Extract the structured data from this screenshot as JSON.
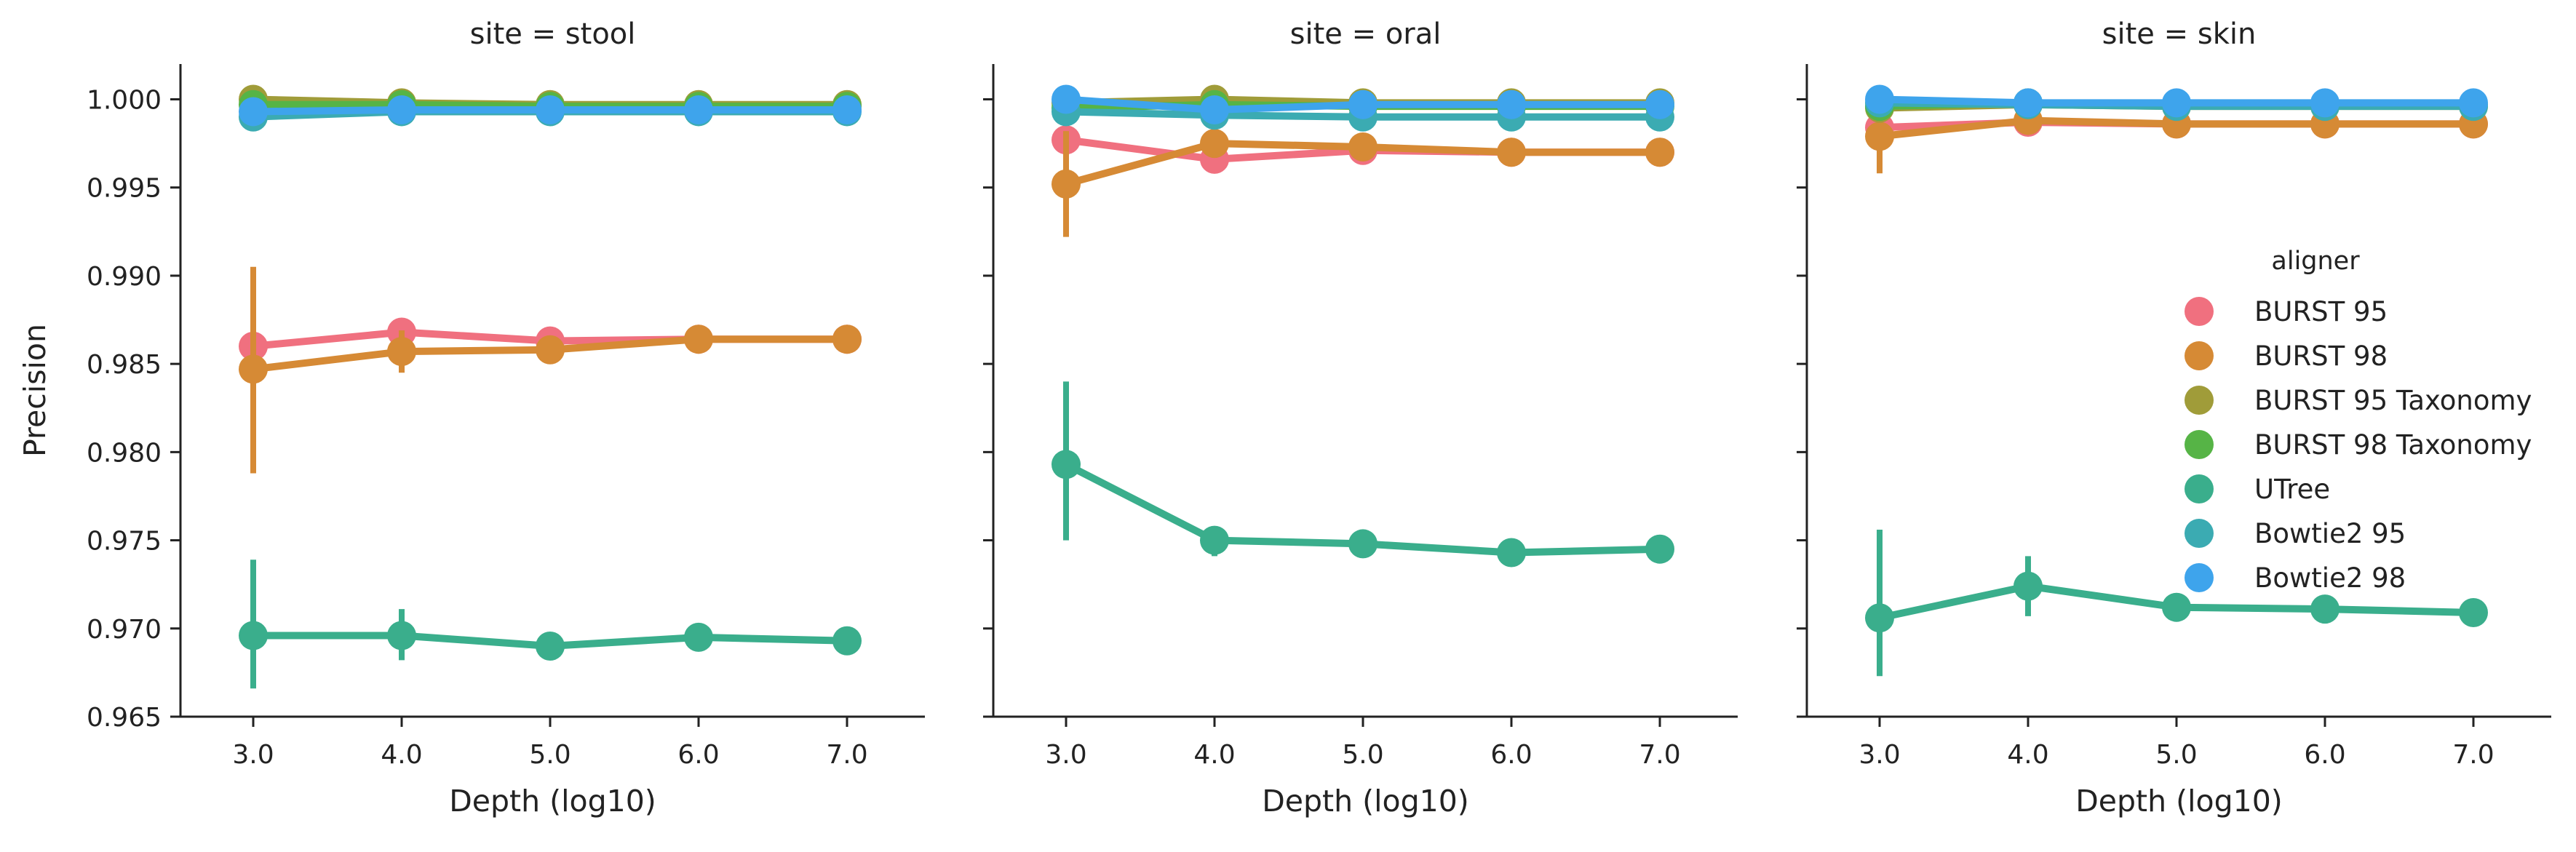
{
  "chart_data": {
    "type": "line",
    "facet_label": "site",
    "ylabel": "Precision",
    "xlabel": "Depth (log10)",
    "ylim": [
      0.965,
      1.002
    ],
    "yticks": [
      "0.965",
      "0.970",
      "0.975",
      "0.980",
      "0.985",
      "0.990",
      "0.995",
      "1.000"
    ],
    "categories": [
      "3.0",
      "4.0",
      "5.0",
      "6.0",
      "7.0"
    ],
    "legend": {
      "title": "aligner",
      "placement": "center-right",
      "items": [
        "BURST 95",
        "BURST 98",
        "BURST 95 Taxonomy",
        "BURST 98 Taxonomy",
        "UTree",
        "Bowtie2 95",
        "Bowtie2 98"
      ]
    },
    "colors": {
      "BURST 95": "#f0707f",
      "BURST 98": "#d68a35",
      "BURST 95 Taxonomy": "#a09c39",
      "BURST 98 Taxonomy": "#56b446",
      "UTree": "#3aae8c",
      "Bowtie2 95": "#3babb2",
      "Bowtie2 98": "#3ea4ec"
    },
    "panels": [
      {
        "title": "site = stool",
        "series": [
          {
            "name": "BURST 95",
            "values": [
              0.986,
              0.9868,
              0.9863,
              0.9864,
              0.9864
            ],
            "err": [
              [
                0.9855,
                0.9865
              ],
              [
                0.986,
                0.9875
              ],
              [
                0.9858,
                0.9868
              ],
              [
                0.986,
                0.9868
              ],
              [
                0.9861,
                0.9867
              ]
            ]
          },
          {
            "name": "BURST 98",
            "values": [
              0.9847,
              0.9857,
              0.9858,
              0.9864,
              0.9864
            ],
            "err": [
              [
                0.9788,
                0.9905
              ],
              [
                0.9845,
                0.9869
              ],
              [
                0.9854,
                0.9862
              ],
              [
                0.9861,
                0.9867
              ],
              [
                0.9861,
                0.9867
              ]
            ]
          },
          {
            "name": "BURST 95 Taxonomy",
            "values": [
              1.0,
              0.9998,
              0.9997,
              0.9997,
              0.9997
            ],
            "err": [
              [
                0.9996,
                1.0002
              ],
              [
                0.9996,
                1.0
              ],
              [
                0.9995,
                0.9999
              ],
              [
                0.9995,
                0.9999
              ],
              [
                0.9995,
                0.9999
              ]
            ]
          },
          {
            "name": "BURST 98 Taxonomy",
            "values": [
              0.9997,
              0.9997,
              0.9996,
              0.9996,
              0.9996
            ],
            "err": [
              [
                0.9993,
                1.0001
              ],
              [
                0.9994,
                1.0
              ],
              [
                0.9994,
                0.9998
              ],
              [
                0.9994,
                0.9998
              ],
              [
                0.9994,
                0.9998
              ]
            ]
          },
          {
            "name": "UTree",
            "values": [
              0.9696,
              0.9696,
              0.969,
              0.9695,
              0.9693
            ],
            "err": [
              [
                0.9666,
                0.9739
              ],
              [
                0.9682,
                0.9711
              ],
              [
                0.9687,
                0.9693
              ],
              [
                0.9692,
                0.9698
              ],
              [
                0.969,
                0.9696
              ]
            ]
          },
          {
            "name": "Bowtie2 95",
            "values": [
              0.999,
              0.9993,
              0.9993,
              0.9993,
              0.9993
            ],
            "err": [
              [
                0.9986,
                0.9994
              ],
              [
                0.9991,
                0.9995
              ],
              [
                0.9991,
                0.9995
              ],
              [
                0.9991,
                0.9995
              ],
              [
                0.9991,
                0.9995
              ]
            ]
          },
          {
            "name": "Bowtie2 98",
            "values": [
              0.9993,
              0.9994,
              0.9994,
              0.9994,
              0.9994
            ],
            "err": [
              [
                0.9989,
                0.9997
              ],
              [
                0.9992,
                0.9996
              ],
              [
                0.9992,
                0.9996
              ],
              [
                0.9992,
                0.9996
              ],
              [
                0.9992,
                0.9996
              ]
            ]
          }
        ]
      },
      {
        "title": "site = oral",
        "series": [
          {
            "name": "BURST 95",
            "values": [
              0.9977,
              0.9966,
              0.9971,
              0.997,
              0.997
            ],
            "err": [
              [
                0.997,
                0.9984
              ],
              [
                0.9962,
                0.997
              ],
              [
                0.9968,
                0.9974
              ],
              [
                0.9967,
                0.9973
              ],
              [
                0.9967,
                0.9973
              ]
            ]
          },
          {
            "name": "BURST 98",
            "values": [
              0.9952,
              0.9975,
              0.9973,
              0.997,
              0.997
            ],
            "err": [
              [
                0.9922,
                0.9982
              ],
              [
                0.9969,
                0.9981
              ],
              [
                0.997,
                0.9976
              ],
              [
                0.9967,
                0.9973
              ],
              [
                0.9967,
                0.9973
              ]
            ]
          },
          {
            "name": "BURST 95 Taxonomy",
            "values": [
              0.9998,
              1.0,
              0.9998,
              0.9998,
              0.9998
            ],
            "err": [
              [
                0.9994,
                1.0002
              ],
              [
                0.9997,
                1.0003
              ],
              [
                0.9996,
                1.0
              ],
              [
                0.9996,
                1.0
              ],
              [
                0.9996,
                1.0
              ]
            ]
          },
          {
            "name": "BURST 98 Taxonomy",
            "values": [
              0.9995,
              0.9997,
              0.9996,
              0.9996,
              0.9996
            ],
            "err": [
              [
                0.9991,
                0.9999
              ],
              [
                0.9994,
                1.0
              ],
              [
                0.9994,
                0.9998
              ],
              [
                0.9994,
                0.9998
              ],
              [
                0.9994,
                0.9998
              ]
            ]
          },
          {
            "name": "UTree",
            "values": [
              0.9793,
              0.975,
              0.9748,
              0.9743,
              0.9745
            ],
            "err": [
              [
                0.975,
                0.984
              ],
              [
                0.9741,
                0.9758
              ],
              [
                0.9745,
                0.9751
              ],
              [
                0.974,
                0.9746
              ],
              [
                0.9742,
                0.9748
              ]
            ]
          },
          {
            "name": "Bowtie2 95",
            "values": [
              0.9993,
              0.9991,
              0.999,
              0.999,
              0.999
            ],
            "err": [
              [
                0.9989,
                0.9997
              ],
              [
                0.9989,
                0.9993
              ],
              [
                0.9988,
                0.9992
              ],
              [
                0.9988,
                0.9992
              ],
              [
                0.9988,
                0.9992
              ]
            ]
          },
          {
            "name": "Bowtie2 98",
            "values": [
              1.0,
              0.9994,
              0.9997,
              0.9997,
              0.9997
            ],
            "err": [
              [
                0.9997,
                1.0003
              ],
              [
                0.9992,
                0.9996
              ],
              [
                0.9995,
                0.9999
              ],
              [
                0.9995,
                0.9999
              ],
              [
                0.9995,
                0.9999
              ]
            ]
          }
        ]
      },
      {
        "title": "site = skin",
        "series": [
          {
            "name": "BURST 95",
            "values": [
              0.9984,
              0.9987,
              0.9986,
              0.9986,
              0.9986
            ],
            "err": [
              [
                0.9979,
                0.9989
              ],
              [
                0.9984,
                0.999
              ],
              [
                0.9984,
                0.9988
              ],
              [
                0.9984,
                0.9988
              ],
              [
                0.9984,
                0.9988
              ]
            ]
          },
          {
            "name": "BURST 98",
            "values": [
              0.9979,
              0.9988,
              0.9986,
              0.9986,
              0.9986
            ],
            "err": [
              [
                0.9958,
                0.9992
              ],
              [
                0.9984,
                0.9992
              ],
              [
                0.9984,
                0.9988
              ],
              [
                0.9984,
                0.9988
              ],
              [
                0.9984,
                0.9988
              ]
            ]
          },
          {
            "name": "BURST 95 Taxonomy",
            "values": [
              0.9995,
              0.9997,
              0.9996,
              0.9996,
              0.9996
            ],
            "err": [
              [
                0.9991,
                0.9999
              ],
              [
                0.9995,
                0.9999
              ],
              [
                0.9994,
                0.9998
              ],
              [
                0.9994,
                0.9998
              ],
              [
                0.9994,
                0.9998
              ]
            ]
          },
          {
            "name": "BURST 98 Taxonomy",
            "values": [
              0.9996,
              0.9998,
              0.9997,
              0.9997,
              0.9997
            ],
            "err": [
              [
                0.9992,
                1.0
              ],
              [
                0.9996,
                1.0
              ],
              [
                0.9995,
                0.9999
              ],
              [
                0.9995,
                0.9999
              ],
              [
                0.9995,
                0.9999
              ]
            ]
          },
          {
            "name": "UTree",
            "values": [
              0.9706,
              0.9724,
              0.9712,
              0.9711,
              0.9709
            ],
            "err": [
              [
                0.9673,
                0.9756
              ],
              [
                0.9707,
                0.9741
              ],
              [
                0.9709,
                0.9715
              ],
              [
                0.9708,
                0.9714
              ],
              [
                0.9706,
                0.9712
              ]
            ]
          },
          {
            "name": "Bowtie2 95",
            "values": [
              0.9998,
              0.9997,
              0.9996,
              0.9996,
              0.9996
            ],
            "err": [
              [
                0.9995,
                1.0001
              ],
              [
                0.9995,
                0.9999
              ],
              [
                0.9994,
                0.9998
              ],
              [
                0.9994,
                0.9998
              ],
              [
                0.9994,
                0.9998
              ]
            ]
          },
          {
            "name": "Bowtie2 98",
            "values": [
              1.0,
              0.9998,
              0.9998,
              0.9998,
              0.9998
            ],
            "err": [
              [
                0.9997,
                1.0003
              ],
              [
                0.9996,
                1.0
              ],
              [
                0.9996,
                1.0
              ],
              [
                0.9996,
                1.0
              ],
              [
                0.9996,
                1.0
              ]
            ]
          }
        ]
      }
    ]
  }
}
